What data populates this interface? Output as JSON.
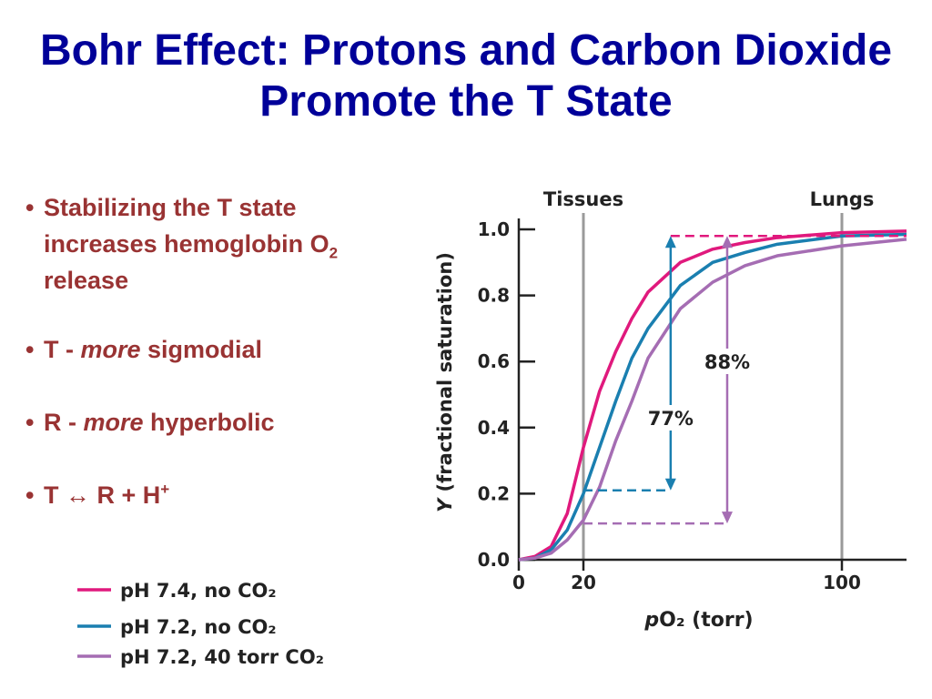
{
  "header": {
    "title": "Bohr Effect: Protons and Carbon Dioxide Promote the T State"
  },
  "bullets": [
    [
      "Stabilizing the T state increases hemoglobin O",
      "2",
      " release"
    ],
    [
      "T - ",
      "more",
      " sigmodial"
    ],
    [
      "R - ",
      "more",
      " hyperbolic"
    ],
    [
      "T ↔ R + H",
      "+"
    ]
  ],
  "chart_data": {
    "type": "line",
    "xlabel_var": "p",
    "xlabel": "O₂ (torr)",
    "ylabel_var": "Y",
    "ylabel": "(fractional saturation)",
    "x": [
      0,
      5,
      10,
      15,
      20,
      25,
      30,
      35,
      40,
      50,
      60,
      70,
      80,
      100,
      120
    ],
    "series": [
      {
        "name": "pH 7.4, no CO₂",
        "color": "#e0197d",
        "values": [
          0,
          0.01,
          0.04,
          0.14,
          0.34,
          0.51,
          0.63,
          0.73,
          0.81,
          0.9,
          0.94,
          0.96,
          0.975,
          0.99,
          0.995
        ]
      },
      {
        "name": "pH 7.2, no CO₂",
        "color": "#1a7fb0",
        "values": [
          0,
          0.005,
          0.03,
          0.09,
          0.2,
          0.34,
          0.48,
          0.61,
          0.7,
          0.83,
          0.9,
          0.93,
          0.955,
          0.98,
          0.985
        ]
      },
      {
        "name": "pH 7.2, 40 torr CO₂",
        "color": "#a56db3",
        "values": [
          0,
          0.005,
          0.02,
          0.06,
          0.12,
          0.22,
          0.36,
          0.48,
          0.61,
          0.76,
          0.84,
          0.89,
          0.92,
          0.95,
          0.97
        ]
      }
    ],
    "xlim": [
      0,
      120
    ],
    "xticks": [
      0,
      20,
      100
    ],
    "ylim": [
      0,
      1
    ],
    "yticks": [
      {
        "value": 0,
        "label": "0.0"
      },
      0.2,
      0.4,
      0.6,
      0.8,
      {
        "value": 1,
        "label": "1.0"
      }
    ],
    "reference_lines": [
      {
        "x": 20,
        "label": "Tissues"
      },
      {
        "x": 100,
        "label": "Lungs"
      }
    ],
    "ceiling": {
      "y": 0.98,
      "x_from": 47,
      "x_to": 120,
      "color": "#e0197d"
    },
    "brackets": [
      {
        "label": "77%",
        "color": "#1a7fb0",
        "x": 47,
        "x_start": 20,
        "y_low": 0.21,
        "y_high": 0.98
      },
      {
        "label": "88%",
        "color": "#a56db3",
        "x": 64.5,
        "x_start": 20,
        "y_low": 0.11,
        "y_high": 0.98
      }
    ]
  }
}
